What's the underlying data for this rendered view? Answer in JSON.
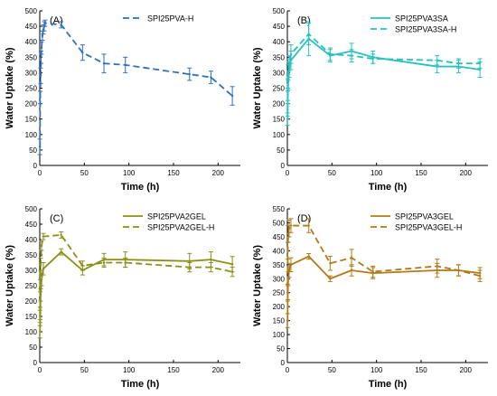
{
  "chart_data": [
    {
      "type": "line",
      "panel_label": "(A)",
      "xlabel": "Time (h)",
      "ylabel": "Water Uptake (%)",
      "xlim": [
        0,
        225
      ],
      "ylim": [
        0,
        500
      ],
      "xticks": [
        0,
        50,
        100,
        150,
        200
      ],
      "yticks": [
        0,
        50,
        100,
        150,
        200,
        250,
        300,
        350,
        400,
        450,
        500
      ],
      "legend_position": "top-center",
      "series": [
        {
          "name": "SPI25PVA-H",
          "style": "dashed",
          "color": "#2e6fbf",
          "x": [
            0.25,
            0.5,
            1,
            1.5,
            2,
            3,
            4,
            5,
            6,
            24,
            48,
            72,
            96,
            168,
            192,
            216
          ],
          "y": [
            60,
            220,
            290,
            350,
            380,
            420,
            440,
            450,
            460,
            455,
            365,
            330,
            325,
            295,
            285,
            225
          ],
          "err": [
            25,
            20,
            25,
            20,
            20,
            15,
            15,
            15,
            10,
            10,
            25,
            30,
            25,
            20,
            20,
            30
          ]
        }
      ]
    },
    {
      "type": "line",
      "panel_label": "(B)",
      "xlabel": "Time (h)",
      "ylabel": "Water Uptake (%)",
      "xlim": [
        0,
        225
      ],
      "ylim": [
        0,
        500
      ],
      "xticks": [
        0,
        50,
        100,
        150,
        200
      ],
      "yticks": [
        0,
        50,
        100,
        150,
        200,
        250,
        300,
        350,
        400,
        450,
        500
      ],
      "legend_position": "top-center",
      "series": [
        {
          "name": "SPI25PVA3SA",
          "style": "solid",
          "color": "#26c1c1",
          "x": [
            0.25,
            0.5,
            1,
            2,
            4,
            24,
            48,
            72,
            96,
            168,
            192,
            216
          ],
          "y": [
            150,
            230,
            270,
            310,
            340,
            410,
            355,
            370,
            350,
            320,
            320,
            310
          ],
          "err": [
            20,
            20,
            25,
            25,
            30,
            55,
            20,
            25,
            20,
            20,
            20,
            25
          ]
        },
        {
          "name": "SPI25PVA3SA-H",
          "style": "dashed",
          "color": "#26c1c1",
          "x": [
            0.25,
            0.5,
            1,
            2,
            4,
            24,
            48,
            72,
            96,
            168,
            192,
            216
          ],
          "y": [
            180,
            260,
            300,
            330,
            360,
            425,
            360,
            355,
            345,
            340,
            330,
            330
          ],
          "err": [
            20,
            20,
            25,
            25,
            30,
            35,
            20,
            20,
            15,
            15,
            15,
            15
          ]
        }
      ]
    },
    {
      "type": "line",
      "panel_label": "(C)",
      "xlabel": "Time (h)",
      "ylabel": "Water Uptake (%)",
      "xlim": [
        0,
        225
      ],
      "ylim": [
        0,
        500
      ],
      "xticks": [
        0,
        50,
        100,
        150,
        200
      ],
      "yticks": [
        0,
        50,
        100,
        150,
        200,
        250,
        300,
        350,
        400,
        450,
        500
      ],
      "legend_position": "top-center",
      "series": [
        {
          "name": "SPI25PVA2GEL",
          "style": "solid",
          "color": "#8a8f16",
          "x": [
            0.25,
            0.5,
            1,
            2,
            4,
            24,
            48,
            72,
            96,
            168,
            192,
            216
          ],
          "y": [
            100,
            160,
            220,
            270,
            305,
            360,
            300,
            335,
            335,
            330,
            335,
            320
          ],
          "err": [
            20,
            20,
            20,
            20,
            20,
            10,
            15,
            20,
            25,
            25,
            25,
            25
          ]
        },
        {
          "name": "SPI25PVA2GEL-H",
          "style": "dashed",
          "color": "#8a8f16",
          "x": [
            0.25,
            0.5,
            1,
            2,
            4,
            24,
            48,
            72,
            96,
            168,
            192,
            216
          ],
          "y": [
            150,
            250,
            320,
            380,
            410,
            415,
            315,
            325,
            325,
            310,
            310,
            295
          ],
          "err": [
            20,
            20,
            20,
            15,
            10,
            10,
            15,
            15,
            15,
            15,
            15,
            15
          ]
        }
      ]
    },
    {
      "type": "line",
      "panel_label": "(D)",
      "xlabel": "Time (h)",
      "ylabel": "Water Uptake (%)",
      "xlim": [
        0,
        225
      ],
      "ylim": [
        0,
        550
      ],
      "xticks": [
        0,
        50,
        100,
        150,
        200
      ],
      "yticks": [
        0,
        50,
        100,
        150,
        200,
        250,
        300,
        350,
        400,
        450,
        500,
        550
      ],
      "legend_position": "top-center",
      "series": [
        {
          "name": "SPI25PVA3GEL",
          "style": "solid",
          "color": "#b07a18",
          "x": [
            0.25,
            0.5,
            1,
            2,
            4,
            24,
            48,
            72,
            96,
            168,
            192,
            216
          ],
          "y": [
            150,
            250,
            300,
            330,
            350,
            380,
            300,
            330,
            320,
            330,
            330,
            320
          ],
          "err": [
            25,
            25,
            25,
            25,
            25,
            10,
            10,
            20,
            20,
            25,
            20,
            20
          ]
        },
        {
          "name": "SPI25PVA3GEL-H",
          "style": "dashed",
          "color": "#b07a18",
          "x": [
            0.25,
            0.5,
            1,
            2,
            4,
            24,
            48,
            72,
            96,
            168,
            192,
            216
          ],
          "y": [
            250,
            400,
            460,
            480,
            490,
            490,
            355,
            375,
            325,
            345,
            330,
            310
          ],
          "err": [
            30,
            30,
            30,
            30,
            25,
            25,
            25,
            30,
            20,
            25,
            20,
            20
          ]
        }
      ]
    }
  ]
}
